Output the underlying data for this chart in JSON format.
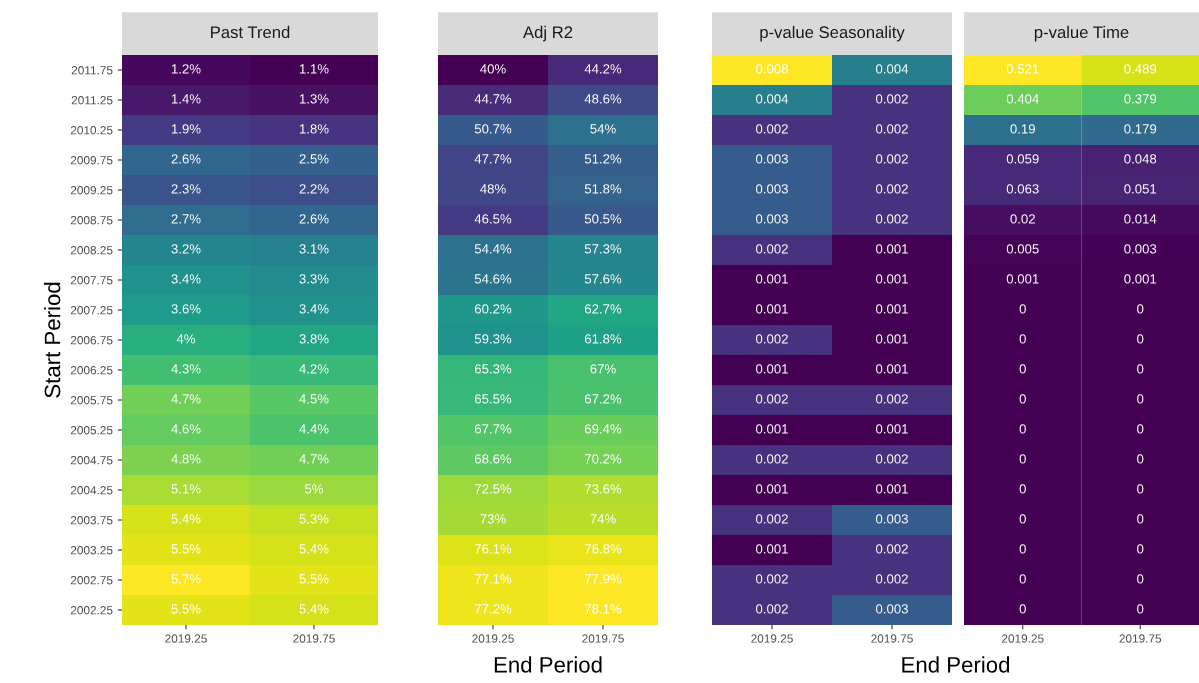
{
  "chart_data": [
    {
      "type": "heatmap",
      "title": "Past Trend",
      "ylabel": "Start Period",
      "categories": [
        "2019.25",
        "2019.75"
      ],
      "y_categories": [
        "2011.75",
        "2011.25",
        "2010.25",
        "2009.75",
        "2009.25",
        "2008.75",
        "2008.25",
        "2007.75",
        "2007.25",
        "2006.75",
        "2006.25",
        "2005.75",
        "2005.25",
        "2004.75",
        "2004.25",
        "2003.75",
        "2003.25",
        "2002.75",
        "2002.25"
      ],
      "cells": [
        [
          1.2,
          1.1
        ],
        [
          1.4,
          1.3
        ],
        [
          1.9,
          1.8
        ],
        [
          2.6,
          2.5
        ],
        [
          2.3,
          2.2
        ],
        [
          2.7,
          2.6
        ],
        [
          3.2,
          3.1
        ],
        [
          3.4,
          3.3
        ],
        [
          3.6,
          3.4
        ],
        [
          4,
          3.8
        ],
        [
          4.3,
          4.2
        ],
        [
          4.7,
          4.5
        ],
        [
          4.6,
          4.4
        ],
        [
          4.8,
          4.7
        ],
        [
          5.1,
          5
        ],
        [
          5.4,
          5.3
        ],
        [
          5.5,
          5.4
        ],
        [
          5.7,
          5.5
        ],
        [
          5.5,
          5.4
        ]
      ],
      "cell_labels": [
        [
          "1.2%",
          "1.1%"
        ],
        [
          "1.4%",
          "1.3%"
        ],
        [
          "1.9%",
          "1.8%"
        ],
        [
          "2.6%",
          "2.5%"
        ],
        [
          "2.3%",
          "2.2%"
        ],
        [
          "2.7%",
          "2.6%"
        ],
        [
          "3.2%",
          "3.1%"
        ],
        [
          "3.4%",
          "3.3%"
        ],
        [
          "3.6%",
          "3.4%"
        ],
        [
          "4%",
          "3.8%"
        ],
        [
          "4.3%",
          "4.2%"
        ],
        [
          "4.7%",
          "4.5%"
        ],
        [
          "4.6%",
          "4.4%"
        ],
        [
          "4.8%",
          "4.7%"
        ],
        [
          "5.1%",
          "5%"
        ],
        [
          "5.4%",
          "5.3%"
        ],
        [
          "5.5%",
          "5.4%"
        ],
        [
          "5.7%",
          "5.5%"
        ],
        [
          "5.5%",
          "5.4%"
        ]
      ]
    },
    {
      "type": "heatmap",
      "title": "Adj R2",
      "xlabel": "End Period",
      "tick_labels": "x",
      "categories": [
        "2019.25",
        "2019.75"
      ],
      "y_categories": [
        "2011.75",
        "2011.25",
        "2010.25",
        "2009.75",
        "2009.25",
        "2008.75",
        "2008.25",
        "2007.75",
        "2007.25",
        "2006.75",
        "2006.25",
        "2005.75",
        "2005.25",
        "2004.75",
        "2004.25",
        "2003.75",
        "2003.25",
        "2002.75",
        "2002.25"
      ],
      "cells": [
        [
          40,
          44.2
        ],
        [
          44.7,
          48.6
        ],
        [
          50.7,
          54
        ],
        [
          47.7,
          51.2
        ],
        [
          48,
          51.8
        ],
        [
          46.5,
          50.5
        ],
        [
          54.4,
          57.3
        ],
        [
          54.6,
          57.6
        ],
        [
          60.2,
          62.7
        ],
        [
          59.3,
          61.8
        ],
        [
          65.3,
          67
        ],
        [
          65.5,
          67.2
        ],
        [
          67.7,
          69.4
        ],
        [
          68.6,
          70.2
        ],
        [
          72.5,
          73.6
        ],
        [
          73,
          74
        ],
        [
          76.1,
          76.8
        ],
        [
          77.1,
          77.9
        ],
        [
          77.2,
          78.1
        ]
      ],
      "cell_labels": [
        [
          "40%",
          "44.2%"
        ],
        [
          "44.7%",
          "48.6%"
        ],
        [
          "50.7%",
          "54%"
        ],
        [
          "47.7%",
          "51.2%"
        ],
        [
          "48%",
          "51.8%"
        ],
        [
          "46.5%",
          "50.5%"
        ],
        [
          "54.4%",
          "57.3%"
        ],
        [
          "54.6%",
          "57.6%"
        ],
        [
          "60.2%",
          "62.7%"
        ],
        [
          "59.3%",
          "61.8%"
        ],
        [
          "65.3%",
          "67%"
        ],
        [
          "65.5%",
          "67.2%"
        ],
        [
          "67.7%",
          "69.4%"
        ],
        [
          "68.6%",
          "70.2%"
        ],
        [
          "72.5%",
          "73.6%"
        ],
        [
          "73%",
          "74%"
        ],
        [
          "76.1%",
          "76.8%"
        ],
        [
          "77.1%",
          "77.9%"
        ],
        [
          "77.2%",
          "78.1%"
        ]
      ]
    },
    {
      "type": "heatmap",
      "title": "p-value Seasonality",
      "xlabel": "End Period",
      "tick_labels": "x",
      "data_labels": true,
      "categories": [
        "2019.25",
        "2019.75"
      ],
      "y_categories": [
        "2011.75",
        "2011.25",
        "2010.25",
        "2009.75",
        "2009.25",
        "2008.75",
        "2008.25",
        "2007.75",
        "2007.25",
        "2006.75",
        "2006.25",
        "2005.75",
        "2005.25",
        "2004.75",
        "2004.25",
        "2003.75",
        "2003.25",
        "2002.75",
        "2002.25"
      ],
      "cells": [
        [
          0.008,
          0.004
        ],
        [
          0.004,
          0.002
        ],
        [
          0.002,
          0.002
        ],
        [
          0.003,
          0.002
        ],
        [
          0.003,
          0.002
        ],
        [
          0.003,
          0.002
        ],
        [
          0.002,
          0.001
        ],
        [
          0.001,
          0.001
        ],
        [
          0.001,
          0.001
        ],
        [
          0.002,
          0.001
        ],
        [
          0.001,
          0.001
        ],
        [
          0.002,
          0.002
        ],
        [
          0.001,
          0.001
        ],
        [
          0.002,
          0.002
        ],
        [
          0.001,
          0.001
        ],
        [
          0.002,
          0.003
        ],
        [
          0.001,
          0.002
        ],
        [
          0.002,
          0.002
        ],
        [
          0.002,
          0.003
        ]
      ]
    },
    {
      "type": "heatmap",
      "title": "p-value Time",
      "tick_labels": "x",
      "data_labels": true,
      "categories": [
        "2019.25",
        "2019.75"
      ],
      "y_categories": [
        "2011.75",
        "2011.25",
        "2010.25",
        "2009.75",
        "2009.25",
        "2008.75",
        "2008.25",
        "2007.75",
        "2007.25",
        "2006.75",
        "2006.25",
        "2005.75",
        "2005.25",
        "2004.75",
        "2004.25",
        "2003.75",
        "2003.25",
        "2002.75",
        "2002.25"
      ],
      "cells": [
        [
          0.521,
          0.489
        ],
        [
          0.404,
          0.379
        ],
        [
          0.19,
          0.179
        ],
        [
          0.059,
          0.048
        ],
        [
          0.063,
          0.051
        ],
        [
          0.02,
          0.014
        ],
        [
          0.005,
          0.003
        ],
        [
          0.001,
          0.001
        ],
        [
          0,
          0
        ],
        [
          0,
          0
        ],
        [
          0,
          0
        ],
        [
          0,
          0
        ],
        [
          0,
          0
        ],
        [
          0,
          0
        ],
        [
          0,
          0
        ],
        [
          0,
          0
        ],
        [
          0,
          0
        ],
        [
          0,
          0
        ],
        [
          0,
          0
        ]
      ]
    }
  ]
}
